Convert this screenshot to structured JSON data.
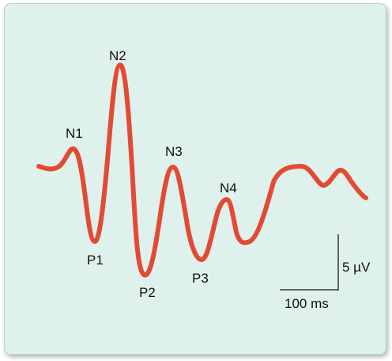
{
  "figure": {
    "waveform_color": "#e24b33",
    "background": "#dff1ec",
    "peaks": [
      {
        "id": "N1",
        "label": "N1"
      },
      {
        "id": "N2",
        "label": "N2"
      },
      {
        "id": "N3",
        "label": "N3"
      },
      {
        "id": "N4",
        "label": "N4"
      },
      {
        "id": "P1",
        "label": "P1"
      },
      {
        "id": "P2",
        "label": "P2"
      },
      {
        "id": "P3",
        "label": "P3"
      }
    ],
    "scale_bar": {
      "amplitude_label": "5 µV",
      "time_label": "100 ms"
    }
  }
}
